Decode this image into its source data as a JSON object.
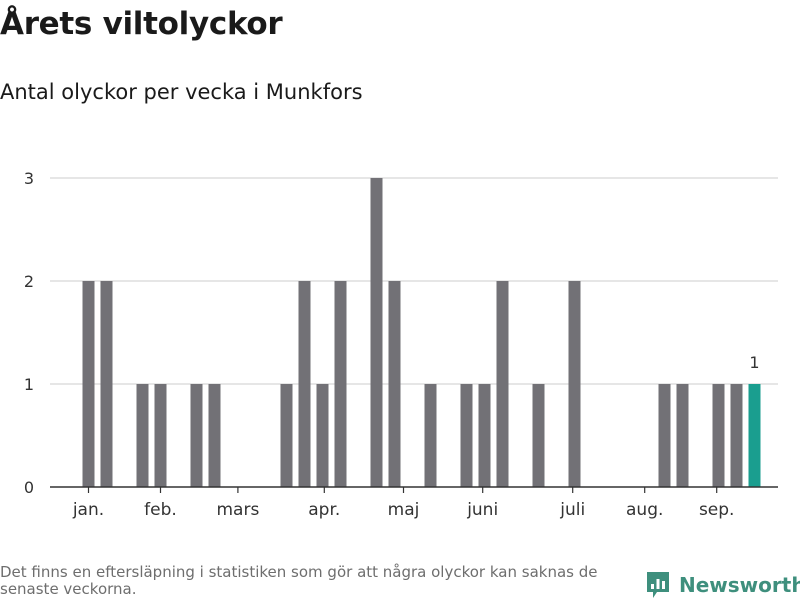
{
  "header": {
    "title": "Årets viltolyckor",
    "subtitle": "Antal olyckor per vecka i Munkfors"
  },
  "footer": {
    "note": "Det finns en eftersläpning i statistiken som gör att några olyckor kan saknas de senaste veckorna.",
    "brand": "Newsworthy"
  },
  "colors": {
    "bar": "#727176",
    "highlight": "#1a9e8f",
    "grid": "#dddddd",
    "axis": "#333333",
    "brand": "#3e8f7d"
  },
  "chart_data": {
    "type": "bar",
    "title": "Årets viltolyckor",
    "subtitle": "Antal olyckor per vecka i Munkfors",
    "xlabel": "",
    "ylabel": "",
    "ylim": [
      0,
      3
    ],
    "yticks": [
      0,
      1,
      2,
      3
    ],
    "grid": true,
    "categories": [
      1,
      2,
      3,
      4,
      5,
      6,
      7,
      8,
      9,
      10,
      11,
      12,
      13,
      14,
      15,
      16,
      17,
      18,
      19,
      20,
      21,
      22,
      23,
      24,
      25,
      26,
      27,
      28,
      29,
      30,
      31,
      32,
      33,
      34,
      35,
      36,
      37,
      38,
      39
    ],
    "values": [
      2,
      2,
      0,
      1,
      1,
      0,
      1,
      1,
      0,
      0,
      0,
      1,
      2,
      1,
      2,
      0,
      3,
      2,
      0,
      1,
      0,
      1,
      1,
      2,
      0,
      1,
      0,
      2,
      0,
      0,
      0,
      0,
      1,
      1,
      0,
      1,
      1,
      1,
      0
    ],
    "highlight_index": 37,
    "data_labels": [
      {
        "index": 37,
        "text": "1"
      }
    ],
    "month_ticks": [
      {
        "label": "jan.",
        "position": 1
      },
      {
        "label": "feb.",
        "position": 5
      },
      {
        "label": "mars",
        "position": 9.3
      },
      {
        "label": "apr.",
        "position": 14.1
      },
      {
        "label": "maj",
        "position": 18.5
      },
      {
        "label": "juni",
        "position": 22.9
      },
      {
        "label": "juli",
        "position": 27.9
      },
      {
        "label": "aug.",
        "position": 31.9
      },
      {
        "label": "sep.",
        "position": 35.9
      }
    ]
  }
}
